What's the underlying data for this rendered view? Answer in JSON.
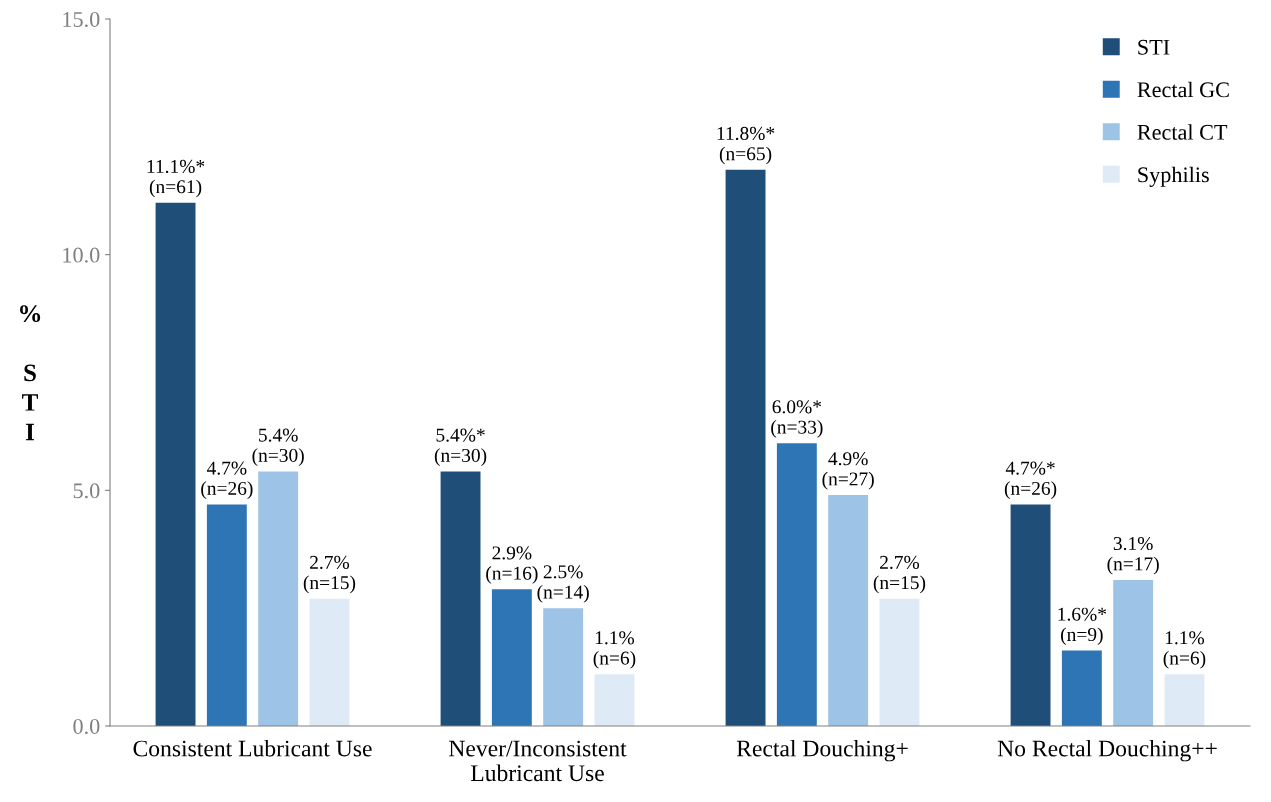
{
  "chart_data": {
    "type": "bar",
    "ylabel": "% STI",
    "categories": [
      "Consistent Lubricant Use",
      "Never/Inconsistent\nLubricant Use",
      "Rectal Douching+",
      "No Rectal Douching++"
    ],
    "series": [
      {
        "name": "STI",
        "color": "#1f4e79",
        "values": [
          11.1,
          5.4,
          11.8,
          4.7
        ],
        "value_labels": [
          "11.1%*\n(n=61)",
          "5.4%*\n(n=30)",
          "11.8%*\n(n=65)",
          "4.7%*\n(n=26)"
        ]
      },
      {
        "name": "Rectal GC",
        "color": "#2e75b6",
        "values": [
          4.7,
          2.9,
          6.0,
          1.6
        ],
        "value_labels": [
          "4.7%\n(n=26)",
          "2.9%\n(n=16)",
          "6.0%*\n(n=33)",
          "1.6%*\n(n=9)"
        ]
      },
      {
        "name": "Rectal CT",
        "color": "#9dc3e6",
        "values": [
          5.4,
          2.5,
          4.9,
          3.1
        ],
        "value_labels": [
          "5.4%\n(n=30)",
          "2.5%\n(n=14)",
          "4.9%\n(n=27)",
          "3.1%\n(n=17)"
        ]
      },
      {
        "name": "Syphilis",
        "color": "#deebf7",
        "values": [
          2.7,
          1.1,
          2.7,
          1.1
        ],
        "value_labels": [
          "2.7%\n(n=15)",
          "1.1%\n(n=6)",
          "2.7%\n(n=15)",
          "1.1%\n(n=6)"
        ]
      }
    ],
    "ylim": [
      0,
      15
    ],
    "yticks": [
      {
        "value": 0,
        "label": "0.0"
      },
      {
        "value": 5,
        "label": "5.0"
      },
      {
        "value": 10,
        "label": "10.0"
      },
      {
        "value": 15,
        "label": "15.0"
      }
    ],
    "grid": false,
    "legend": "top right"
  }
}
